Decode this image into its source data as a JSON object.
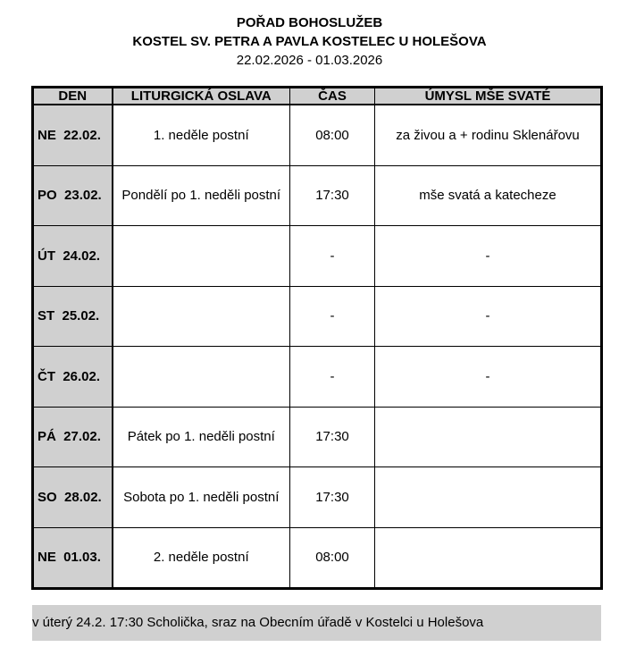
{
  "header": {
    "title": "POŘAD BOHOSLUŽEB",
    "church": "KOSTEL SV. PETRA A PAVLA KOSTELEC U HOLEŠOVA",
    "date_range": "22.02.2026 - 01.03.2026"
  },
  "table": {
    "columns": [
      "DEN",
      "LITURGICKÁ OSLAVA",
      "ČAS",
      "ÚMYSL MŠE SVATÉ"
    ],
    "rows": [
      {
        "day": "NE  22.02.",
        "celebration": "1. neděle postní",
        "time": "08:00",
        "intention": "za živou a + rodinu Sklenářovu"
      },
      {
        "day": "PO  23.02.",
        "celebration": "Pondělí po 1. neděli postní",
        "time": "17:30",
        "intention": "mše svatá a katecheze"
      },
      {
        "day": "ÚT  24.02.",
        "celebration": "",
        "time": "-",
        "intention": "-"
      },
      {
        "day": "ST  25.02.",
        "celebration": "",
        "time": "-",
        "intention": "-"
      },
      {
        "day": "ČT  26.02.",
        "celebration": "",
        "time": "-",
        "intention": "-"
      },
      {
        "day": "PÁ  27.02.",
        "celebration": "Pátek po 1. neděli postní",
        "time": "17:30",
        "intention": ""
      },
      {
        "day": "SO  28.02.",
        "celebration": "Sobota po 1. neděli postní",
        "time": "17:30",
        "intention": ""
      },
      {
        "day": "NE  01.03.",
        "celebration": "2. neděle postní",
        "time": "08:00",
        "intention": ""
      }
    ]
  },
  "note": "v úterý 24.2. 17:30 Scholička, sraz na Obecním úřadě v Kostelci u Holešova"
}
